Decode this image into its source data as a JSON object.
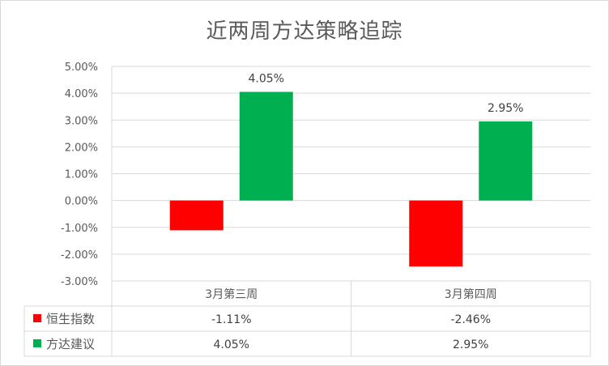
{
  "chart_data": {
    "type": "bar",
    "title": "近两周方达策略追踪",
    "categories": [
      "3月第三周",
      "3月第四周"
    ],
    "series": [
      {
        "name": "恒生指数",
        "values": [
          -1.11,
          -2.46
        ],
        "labels": [
          "-1.11%",
          "-2.46%"
        ],
        "color": "#ff0000",
        "data_labels": false
      },
      {
        "name": "方达建议",
        "values": [
          4.05,
          2.95
        ],
        "labels": [
          "4.05%",
          "2.95%"
        ],
        "color": "#00b050",
        "data_labels": true
      }
    ],
    "y_ticks": [
      5,
      4,
      3,
      2,
      1,
      0,
      -1,
      -2,
      -3
    ],
    "y_tick_labels": [
      "5.00%",
      "4.00%",
      "3.00%",
      "2.00%",
      "1.00%",
      "0.00%",
      "-1.00%",
      "-2.00%",
      "-3.00%"
    ],
    "ylim": [
      -3,
      5
    ],
    "grid": true,
    "legend": "data-table",
    "xlabel": "",
    "ylabel": ""
  }
}
